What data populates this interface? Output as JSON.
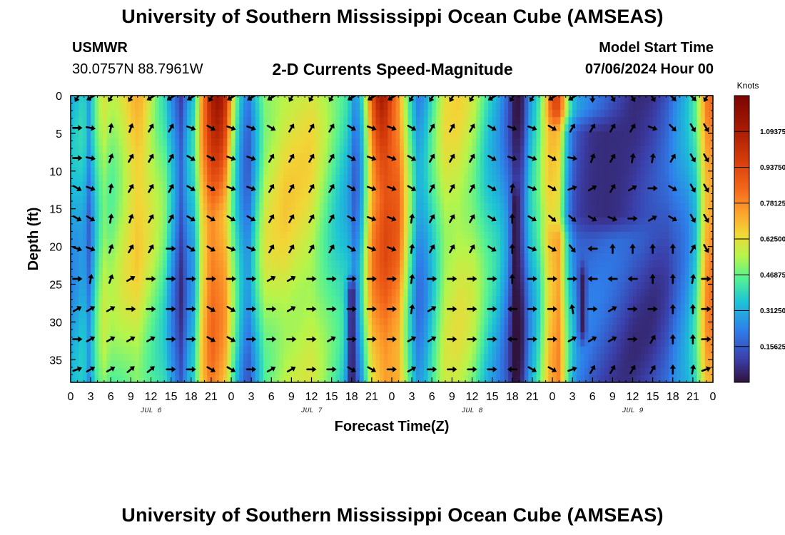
{
  "header": {
    "title": "University of Southern Mississippi Ocean Cube (AMSEAS)",
    "station": "USMWR",
    "coords": "30.0757N  88.7961W",
    "subtitle": "2-D Currents Speed-Magnitude",
    "model_start_label": "Model Start Time",
    "model_start_value": "07/06/2024 Hour 00"
  },
  "footer": {
    "title": "University of Southern Mississippi Ocean Cube (AMSEAS)"
  },
  "chart_data": {
    "type": "heatmap",
    "title": "2-D Currents Speed-Magnitude",
    "xlabel": "Forecast Time(Z)",
    "ylabel": "Depth (ft)",
    "x_hours": [
      0,
      3,
      6,
      9,
      12,
      15,
      18,
      21,
      24,
      27,
      30,
      33,
      36,
      39,
      42,
      45,
      48,
      51,
      54,
      57,
      60,
      63,
      66,
      69,
      72,
      75,
      78,
      81,
      84,
      87,
      90,
      93,
      96
    ],
    "xtick_labels": [
      "0",
      "3",
      "6",
      "9",
      "12",
      "15",
      "18",
      "21",
      "0",
      "3",
      "6",
      "9",
      "12",
      "15",
      "18",
      "21",
      "0",
      "3",
      "6",
      "9",
      "12",
      "15",
      "18",
      "21",
      "0",
      "3",
      "6",
      "9",
      "12",
      "15",
      "18",
      "21",
      "0"
    ],
    "day_labels": [
      {
        "text": "JUL 6",
        "hour": 12
      },
      {
        "text": "JUL 7",
        "hour": 36
      },
      {
        "text": "JUL 8",
        "hour": 60
      },
      {
        "text": "JUL 9",
        "hour": 84
      }
    ],
    "yticks": [
      0,
      5,
      10,
      15,
      20,
      25,
      30,
      35
    ],
    "ylim": [
      0,
      38
    ],
    "xlim": [
      0,
      96
    ],
    "colorbar": {
      "label": "Knots",
      "tick_values": [
        1.09375,
        0.9375,
        0.78125,
        0.625,
        0.46875,
        0.3125,
        0.15625
      ],
      "tick_labels": [
        "1.09375",
        "0.93750",
        "0.78125",
        "0.62500",
        "0.46875",
        "0.31250",
        "0.15625"
      ],
      "range": [
        0,
        1.25
      ]
    },
    "speed_model": {
      "background": [
        [
          0,
          0.3
        ],
        [
          1,
          0.32
        ],
        [
          2,
          0.35
        ],
        [
          2.5,
          0.2
        ],
        [
          3,
          0.28
        ],
        [
          4,
          0.45
        ],
        [
          5,
          0.55
        ],
        [
          6,
          0.5
        ],
        [
          10,
          0.62
        ],
        [
          14,
          0.45
        ],
        [
          15.5,
          0.25
        ],
        [
          16.5,
          0.12
        ],
        [
          17.5,
          0.28
        ],
        [
          18.5,
          0.35
        ],
        [
          19.5,
          0.65
        ],
        [
          21,
          0.85
        ],
        [
          23,
          0.75
        ],
        [
          24.5,
          0.45
        ],
        [
          25.5,
          0.3
        ],
        [
          26.5,
          0.2
        ],
        [
          27.5,
          0.35
        ],
        [
          29,
          0.55
        ],
        [
          32,
          0.62
        ],
        [
          36,
          0.6
        ],
        [
          39,
          0.45
        ],
        [
          41.5,
          0.35
        ],
        [
          42.5,
          0.2
        ],
        [
          43.5,
          0.35
        ],
        [
          45,
          0.75
        ],
        [
          47,
          0.88
        ],
        [
          49,
          0.82
        ],
        [
          51,
          0.4
        ],
        [
          52,
          0.25
        ],
        [
          53,
          0.3
        ],
        [
          54,
          0.4
        ],
        [
          56,
          0.58
        ],
        [
          58,
          0.6
        ],
        [
          60,
          0.55
        ],
        [
          62,
          0.42
        ],
        [
          64,
          0.32
        ],
        [
          65.5,
          0.2
        ],
        [
          66.5,
          0.05
        ],
        [
          67.5,
          0.1
        ],
        [
          68.5,
          0.3
        ],
        [
          70,
          0.45
        ],
        [
          71.5,
          0.72
        ],
        [
          73,
          0.8
        ],
        [
          74,
          0.5
        ],
        [
          75,
          0.3
        ],
        [
          76,
          0.22
        ],
        [
          78,
          0.18
        ],
        [
          81,
          0.15
        ],
        [
          84,
          0.12
        ],
        [
          87,
          0.12
        ],
        [
          89,
          0.15
        ],
        [
          90,
          0.2
        ],
        [
          92,
          0.28
        ],
        [
          93.5,
          0.4
        ],
        [
          95,
          0.75
        ],
        [
          96,
          0.8
        ]
      ],
      "surface_cores": [
        {
          "hour": 22,
          "width": 1.6,
          "depth": 16,
          "peak": 1.15
        },
        {
          "hour": 46.5,
          "width": 1.5,
          "depth": 14,
          "peak": 1.1
        },
        {
          "hour": 72.5,
          "width": 1.0,
          "depth": 8,
          "peak": 0.95
        },
        {
          "hour": 10,
          "width": 2.0,
          "depth": 22,
          "peak": 0.72
        }
      ],
      "troughs": [
        {
          "hour": 42,
          "width": 0.7,
          "depth_from": 26,
          "depth_to": 38,
          "min": 0.03
        },
        {
          "hour": 66.5,
          "width": 0.6,
          "depth_from": 14,
          "depth_to": 38,
          "min": 0.0
        },
        {
          "hour": 76.5,
          "width": 0.6,
          "depth_from": 24,
          "depth_to": 31,
          "min": 0.03
        },
        {
          "hour": 80,
          "width": 6,
          "depth_from": 5,
          "depth_to": 16,
          "min": 0.06
        }
      ]
    },
    "arrow_depths_ft": [
      0,
      4,
      8,
      12,
      16,
      20,
      24,
      28,
      32,
      36
    ],
    "arrow_columns": [
      1,
      3,
      6,
      9,
      12,
      15,
      18,
      21,
      24,
      27,
      30,
      33,
      36,
      39,
      42,
      45,
      48,
      51,
      54,
      57,
      60,
      63,
      66,
      69,
      72,
      75,
      78,
      81,
      84,
      87,
      90,
      93,
      95
    ],
    "arrow_angles_deg": [
      [
        120,
        150,
        120,
        120,
        150,
        150,
        150,
        120,
        150,
        150,
        150,
        120,
        120,
        120,
        150,
        150,
        150,
        120,
        120,
        120,
        120,
        150,
        120,
        120,
        150,
        150,
        90,
        60,
        60,
        60,
        45,
        45,
        120
      ],
      [
        0,
        10,
        -80,
        -70,
        -60,
        -60,
        20,
        30,
        20,
        20,
        30,
        -60,
        -60,
        -60,
        30,
        20,
        20,
        30,
        -60,
        -60,
        -60,
        30,
        20,
        20,
        30,
        -60,
        -60,
        -60,
        -60,
        20,
        45,
        60,
        60
      ],
      [
        0,
        10,
        -70,
        -60,
        -60,
        -60,
        30,
        30,
        20,
        20,
        -60,
        -60,
        -60,
        -60,
        30,
        20,
        20,
        30,
        -60,
        -60,
        -60,
        30,
        20,
        20,
        30,
        10,
        -70,
        -60,
        -80,
        -80,
        -60,
        60,
        60
      ],
      [
        30,
        20,
        -80,
        -60,
        -60,
        -60,
        30,
        30,
        20,
        20,
        -60,
        -60,
        -60,
        -60,
        30,
        20,
        20,
        30,
        -60,
        -60,
        -60,
        30,
        -80,
        20,
        30,
        -20,
        -30,
        -60,
        -30,
        0,
        30,
        60,
        60
      ],
      [
        30,
        30,
        -80,
        -70,
        -60,
        -60,
        30,
        30,
        30,
        30,
        -60,
        -60,
        -60,
        -60,
        30,
        20,
        20,
        -80,
        -60,
        -60,
        -60,
        30,
        -90,
        30,
        40,
        40,
        30,
        20,
        0,
        -30,
        30,
        60,
        60
      ],
      [
        20,
        20,
        -70,
        -60,
        -60,
        0,
        30,
        30,
        20,
        20,
        -60,
        -60,
        -60,
        -60,
        30,
        20,
        20,
        -80,
        -60,
        -60,
        -60,
        30,
        -90,
        20,
        30,
        50,
        180,
        -90,
        -90,
        -90,
        -90,
        -60,
        60
      ],
      [
        0,
        -80,
        -70,
        -30,
        0,
        0,
        0,
        0,
        0,
        0,
        -30,
        -30,
        0,
        0,
        0,
        0,
        0,
        -80,
        0,
        0,
        0,
        0,
        -90,
        0,
        0,
        0,
        180,
        180,
        180,
        -90,
        -90,
        -80,
        0
      ],
      [
        -30,
        -30,
        -30,
        0,
        0,
        0,
        0,
        30,
        30,
        0,
        0,
        -30,
        0,
        0,
        0,
        0,
        0,
        -80,
        -30,
        0,
        0,
        0,
        180,
        0,
        0,
        -100,
        0,
        -30,
        0,
        0,
        -90,
        -90,
        0
      ],
      [
        0,
        -30,
        -30,
        -30,
        -30,
        0,
        0,
        30,
        30,
        0,
        0,
        0,
        0,
        -30,
        0,
        0,
        0,
        -30,
        -30,
        0,
        0,
        0,
        180,
        0,
        0,
        -30,
        -30,
        -30,
        0,
        -60,
        -90,
        -90,
        0
      ],
      [
        -20,
        -30,
        -30,
        -40,
        -40,
        0,
        0,
        30,
        30,
        0,
        -30,
        -30,
        0,
        0,
        30,
        30,
        0,
        -30,
        0,
        0,
        0,
        0,
        180,
        30,
        30,
        -20,
        -60,
        -60,
        -60,
        -60,
        -90,
        -80,
        -20
      ]
    ]
  }
}
